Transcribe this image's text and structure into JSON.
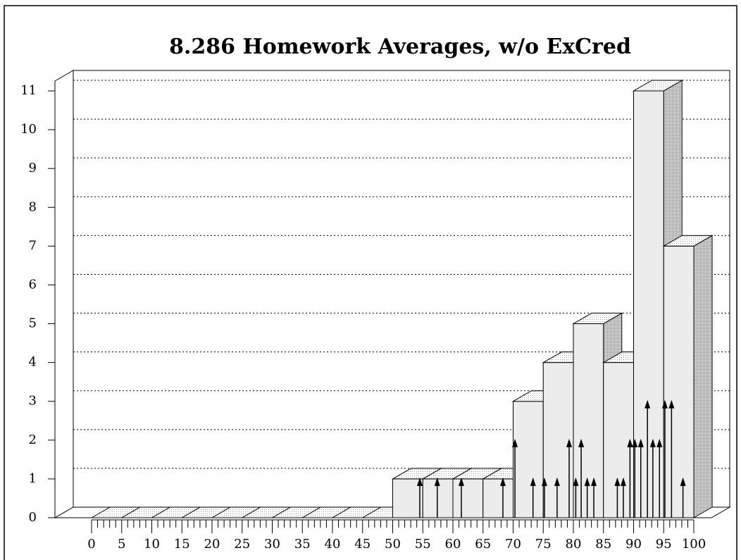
{
  "chart_data": {
    "type": "histogram",
    "title": "8.286 Homework Averages, w/o ExCred",
    "bins": [
      0,
      5,
      10,
      15,
      20,
      25,
      30,
      35,
      40,
      45,
      50,
      55,
      60,
      65,
      70,
      75,
      80,
      85,
      90,
      95,
      100
    ],
    "counts": [
      0,
      0,
      0,
      0,
      0,
      0,
      0,
      0,
      0,
      0,
      1,
      1,
      1,
      1,
      3,
      4,
      5,
      4,
      11,
      7
    ],
    "scores": {
      "x": [
        54.5,
        57.4,
        61.4,
        68.3,
        70.3,
        73.3,
        75.2,
        77.3,
        79.3,
        80.4,
        81.3,
        82.3,
        83.4,
        87.3,
        88.3,
        89.4,
        90.2,
        91.2,
        92.3,
        93.2,
        94.3,
        95.2,
        96.3,
        98.2
      ],
      "values": [
        1,
        1,
        1,
        1,
        2,
        1,
        1,
        1,
        2,
        1,
        2,
        1,
        1,
        1,
        1,
        2,
        2,
        2,
        3,
        2,
        2,
        3,
        3,
        1
      ]
    },
    "xlim": [
      0,
      100
    ],
    "ylim": [
      0,
      11
    ],
    "xticks": [
      0,
      5,
      10,
      15,
      20,
      25,
      30,
      35,
      40,
      45,
      50,
      55,
      60,
      65,
      70,
      75,
      80,
      85,
      90,
      95,
      100
    ],
    "yticks": [
      0,
      1,
      2,
      3,
      4,
      5,
      6,
      7,
      8,
      9,
      10,
      11
    ],
    "grid": true,
    "color": "#ececec"
  }
}
